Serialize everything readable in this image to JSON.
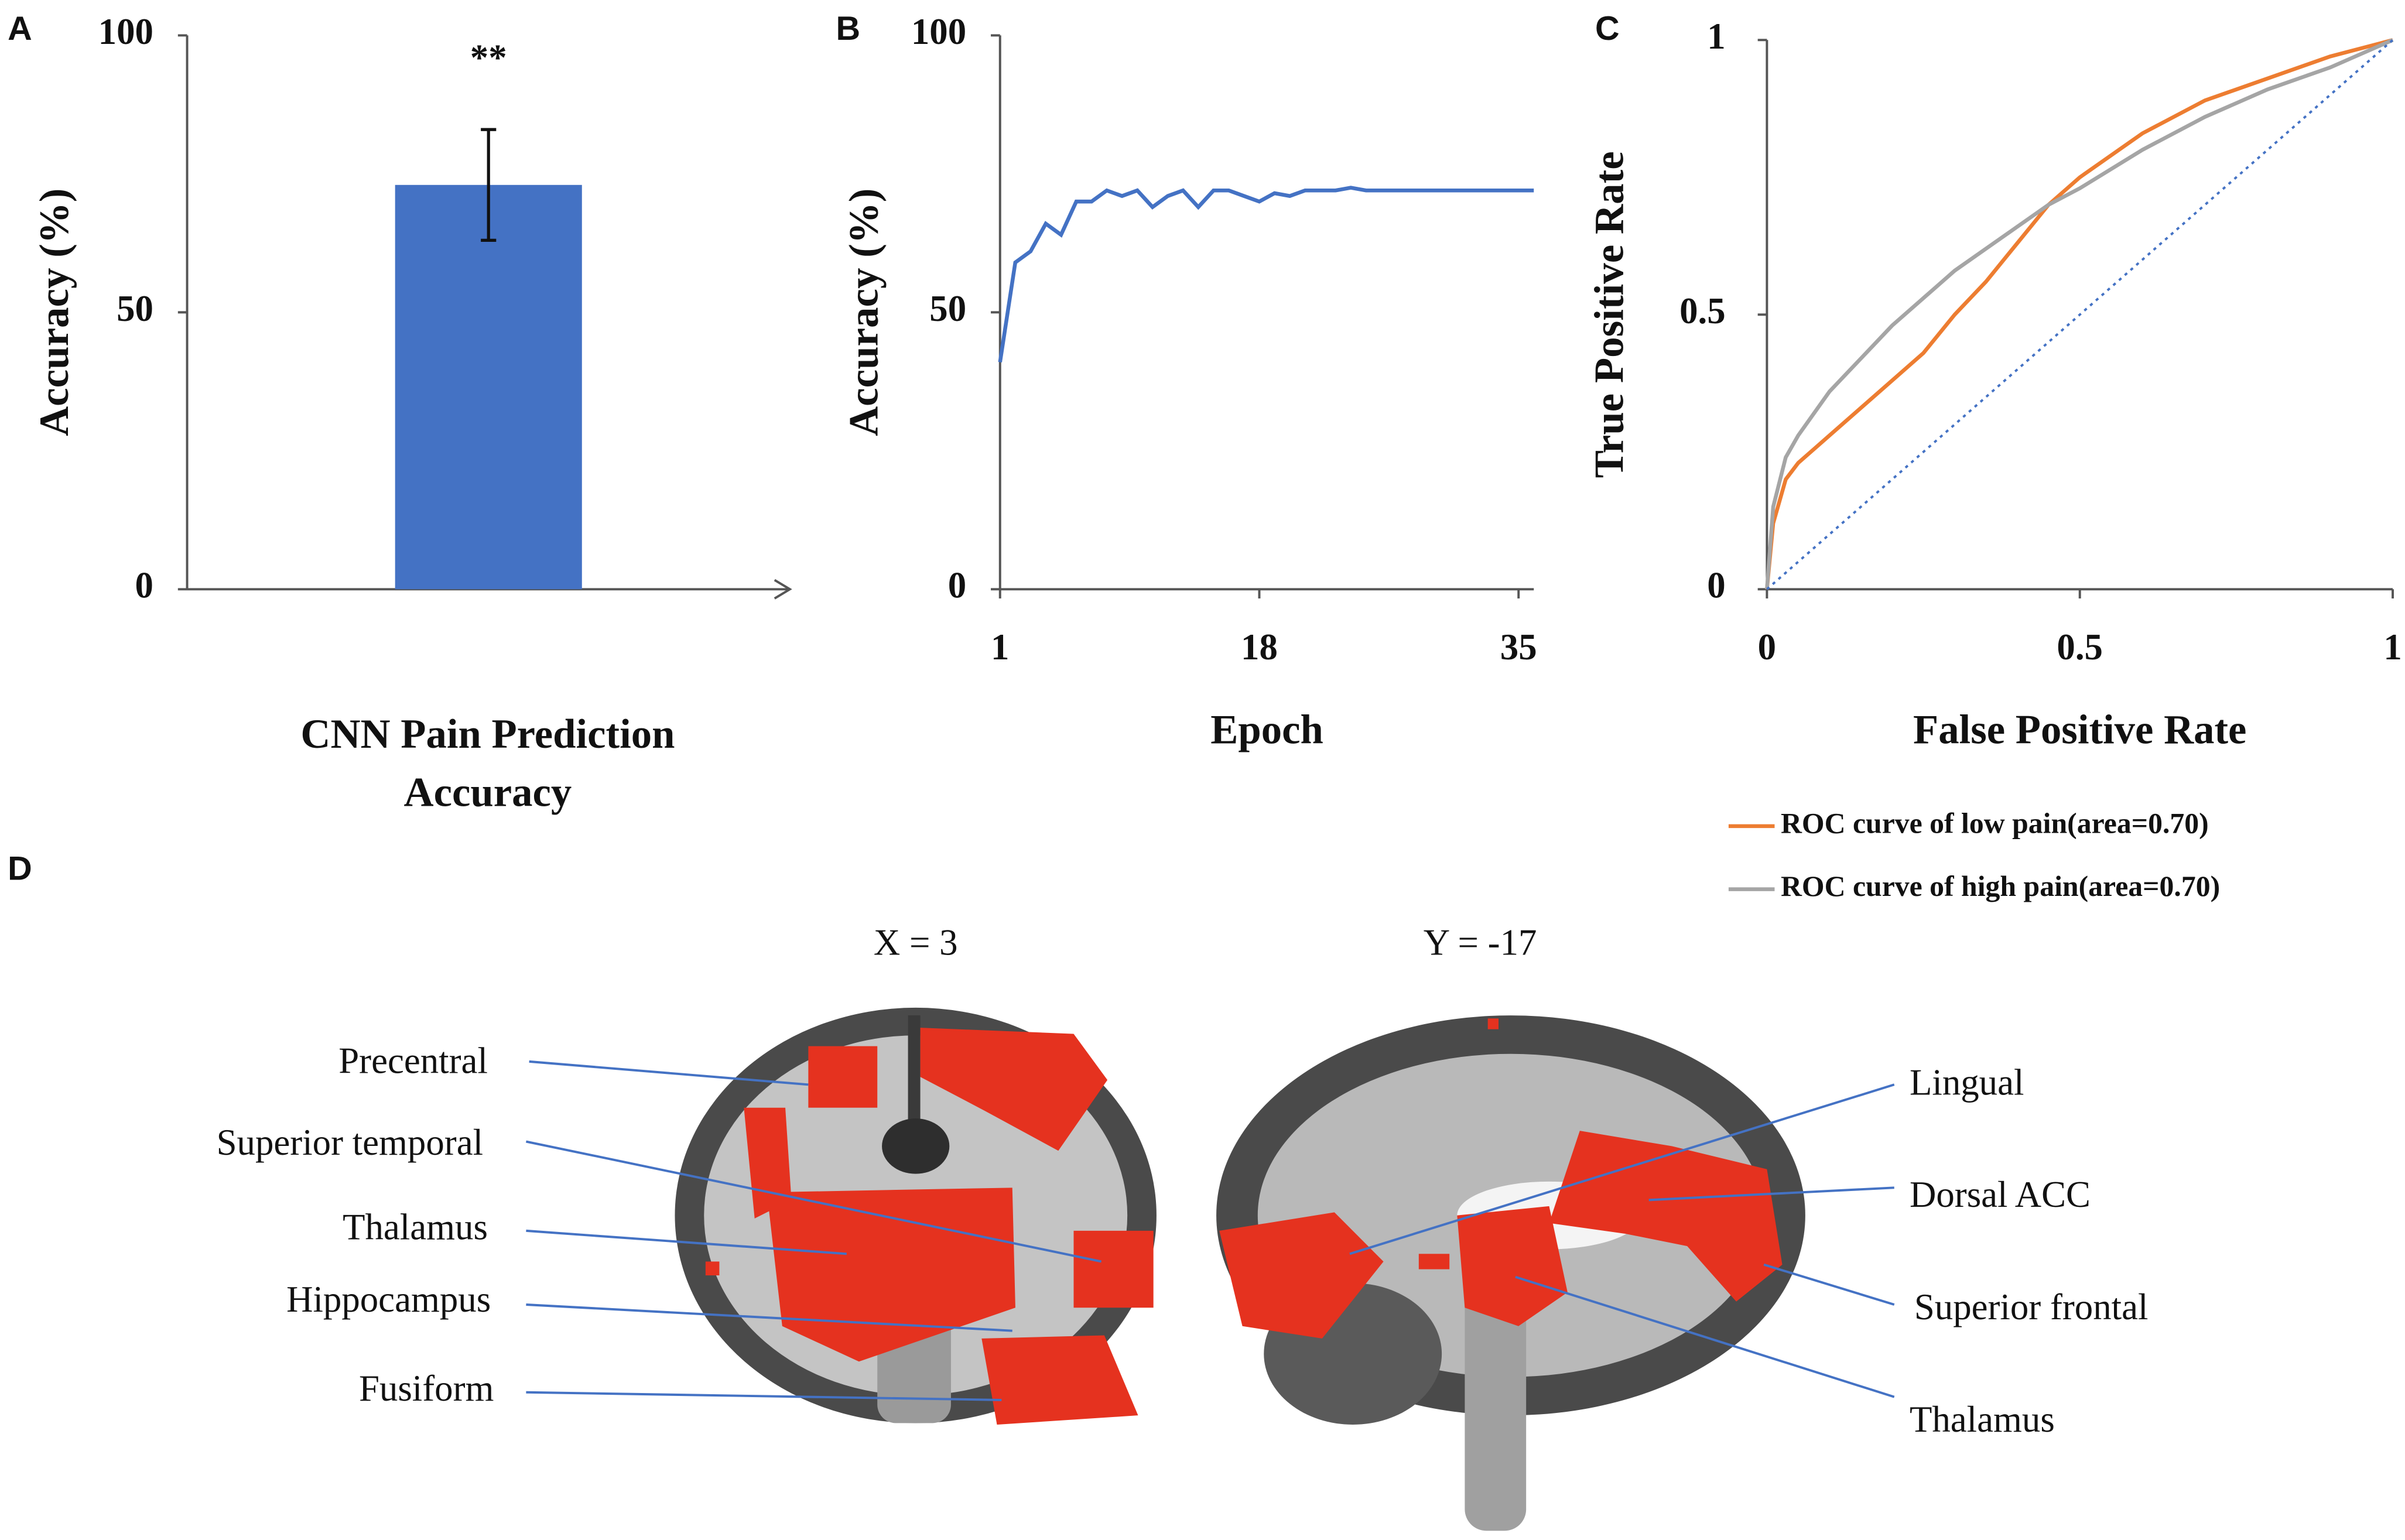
{
  "chart_data": [
    {
      "type": "bar",
      "panel": "A",
      "categories": [
        null
      ],
      "values": [
        73
      ],
      "errors": [
        10
      ],
      "color": "#4472c4",
      "annotation": "**",
      "ylabel": "Accuracy (%)",
      "xlabel": "CNN Pain Prediction Accuracy",
      "ylim": [
        0,
        100
      ],
      "yticks": [
        0,
        50,
        100
      ],
      "grid": false
    },
    {
      "type": "line",
      "panel": "B",
      "x": [
        1,
        2,
        3,
        4,
        5,
        6,
        7,
        8,
        9,
        10,
        11,
        12,
        13,
        14,
        15,
        16,
        17,
        18,
        19,
        20,
        21,
        22,
        23,
        24,
        25,
        26,
        27,
        28,
        29,
        30,
        31,
        32,
        33,
        34,
        35,
        36
      ],
      "series": [
        {
          "color": "#4472c4",
          "values": [
            41,
            59,
            61,
            66,
            64,
            70,
            70,
            72,
            71,
            72,
            69,
            71,
            72,
            69,
            72,
            72,
            71,
            70,
            71.5,
            71,
            72,
            72,
            72,
            72.5,
            72,
            72,
            72,
            72,
            72,
            72,
            72,
            72,
            72,
            72,
            72,
            72
          ]
        }
      ],
      "ylabel": "Accuracy (%)",
      "xlabel": "Epoch",
      "xlim": [
        1,
        36
      ],
      "xticks": [
        1,
        18,
        35
      ],
      "ylim": [
        0,
        100
      ],
      "yticks": [
        0,
        50,
        100
      ],
      "grid": false
    },
    {
      "type": "line",
      "panel": "C",
      "ylabel": "True Positive Rate",
      "xlabel": "False Positive Rate",
      "xlim": [
        0,
        1
      ],
      "xticks": [
        0,
        0.5,
        1
      ],
      "ylim": [
        0,
        1
      ],
      "yticks": [
        0,
        0.5,
        1
      ],
      "grid": false,
      "legend": "bottom",
      "series": [
        {
          "name": "ROC curve of low pain(area=0.70)",
          "color": "#ed7d31",
          "x": [
            0,
            0.01,
            0.03,
            0.05,
            0.1,
            0.15,
            0.2,
            0.25,
            0.3,
            0.35,
            0.4,
            0.45,
            0.5,
            0.6,
            0.7,
            0.8,
            0.9,
            1
          ],
          "values": [
            0,
            0.12,
            0.2,
            0.23,
            0.28,
            0.33,
            0.38,
            0.43,
            0.5,
            0.56,
            0.63,
            0.7,
            0.75,
            0.83,
            0.89,
            0.93,
            0.97,
            1
          ]
        },
        {
          "name": "ROC curve of high pain(area=0.70)",
          "color": "#a5a5a5",
          "x": [
            0,
            0.01,
            0.03,
            0.05,
            0.1,
            0.15,
            0.2,
            0.25,
            0.3,
            0.35,
            0.4,
            0.45,
            0.5,
            0.6,
            0.7,
            0.8,
            0.9,
            1
          ],
          "values": [
            0,
            0.15,
            0.24,
            0.28,
            0.36,
            0.42,
            0.48,
            0.53,
            0.58,
            0.62,
            0.66,
            0.7,
            0.73,
            0.8,
            0.86,
            0.91,
            0.95,
            1
          ]
        },
        {
          "color": "#4472c4",
          "style": "dotted",
          "x": [
            0,
            1
          ],
          "values": [
            0,
            1
          ]
        }
      ]
    }
  ],
  "panel_d": {
    "letter": "D",
    "slices": [
      {
        "title": "X = 3",
        "labels": [
          "Precentral",
          "Superior temporal",
          "Thalamus",
          "Hippocampus",
          "Fusiform"
        ]
      },
      {
        "title": "Y = -17",
        "labels": [
          "Lingual",
          "Dorsal ACC",
          "Superior frontal",
          "Thalamus"
        ]
      }
    ]
  }
}
